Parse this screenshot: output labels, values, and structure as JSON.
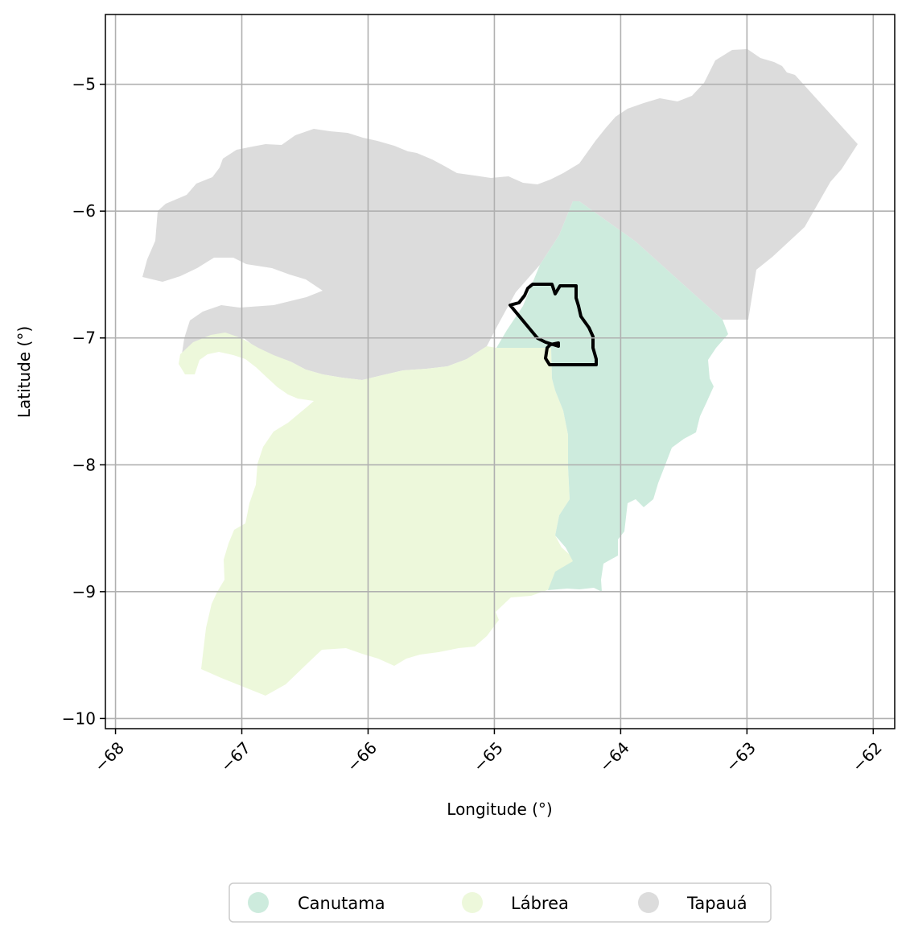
{
  "map": {
    "xlabel": "Longitude (°)",
    "ylabel": "Latitude (°)",
    "xlim": [
      -68.08,
      -61.83
    ],
    "ylim": [
      -10.08,
      -4.45
    ],
    "x_ticks": [
      {
        "value": -68,
        "label": "−68"
      },
      {
        "value": -67,
        "label": "−67"
      },
      {
        "value": -66,
        "label": "−66"
      },
      {
        "value": -65,
        "label": "−65"
      },
      {
        "value": -64,
        "label": "−64"
      },
      {
        "value": -63,
        "label": "−63"
      },
      {
        "value": -62,
        "label": "−62"
      }
    ],
    "y_ticks": [
      {
        "value": -5,
        "label": "−5"
      },
      {
        "value": -6,
        "label": "−6"
      },
      {
        "value": -7,
        "label": "−7"
      },
      {
        "value": -8,
        "label": "−8"
      },
      {
        "value": -9,
        "label": "−9"
      },
      {
        "value": -10,
        "label": "−10"
      }
    ],
    "grid": true,
    "legend_placement": "bottom-center",
    "regions": [
      {
        "name": "Tapauá",
        "color": "#dcdcdc"
      },
      {
        "name": "Lábrea",
        "color": "#edf8db"
      },
      {
        "name": "Canutama",
        "color": "#cdebdd"
      }
    ],
    "highlight_outline_color": "#000000",
    "legend": [
      {
        "label": "Canutama",
        "color": "#cdebdd"
      },
      {
        "label": "Lábrea",
        "color": "#edf8db"
      },
      {
        "label": "Tapauá",
        "color": "#dcdcdc"
      }
    ]
  }
}
